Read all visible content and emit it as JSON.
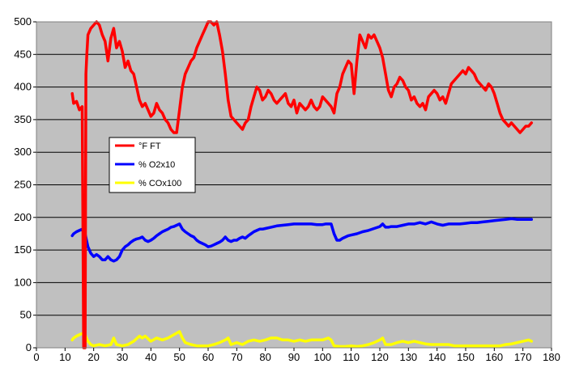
{
  "chart_data": {
    "type": "line",
    "xlim": [
      0,
      180
    ],
    "ylim": [
      0,
      500
    ],
    "xticks": [
      0,
      10,
      20,
      30,
      40,
      50,
      60,
      70,
      80,
      90,
      100,
      110,
      120,
      130,
      140,
      150,
      160,
      170,
      180
    ],
    "yticks": [
      0,
      50,
      100,
      150,
      200,
      250,
      300,
      350,
      400,
      450,
      500
    ],
    "grid": "horizontal",
    "plot_background": "#c0c0c0",
    "legend_position": "center-left",
    "series": [
      {
        "name": "°F FT",
        "color": "#ff0000",
        "x": [
          12.5,
          13,
          14,
          15,
          16,
          16.5,
          17,
          17.3,
          17.6,
          18,
          19,
          20,
          21,
          22,
          23,
          24,
          25,
          26,
          27,
          28,
          29,
          30,
          31,
          32,
          33,
          34,
          35,
          36,
          37,
          38,
          39,
          40,
          41,
          42,
          43,
          44,
          45,
          46,
          47,
          48,
          49,
          50,
          51,
          52,
          53,
          54,
          55,
          56,
          57,
          58,
          59,
          60,
          61,
          62,
          63,
          64,
          65,
          66,
          67,
          68,
          69,
          70,
          71,
          72,
          73,
          74,
          75,
          76,
          77,
          78,
          79,
          80,
          81,
          82,
          83,
          84,
          85,
          86,
          87,
          88,
          89,
          90,
          91,
          92,
          93,
          94,
          95,
          96,
          97,
          98,
          99,
          100,
          101,
          102,
          103,
          104,
          105,
          106,
          107,
          108,
          109,
          110,
          111,
          112,
          113,
          114,
          115,
          116,
          117,
          118,
          119,
          120,
          121,
          122,
          123,
          124,
          125,
          126,
          127,
          128,
          129,
          130,
          131,
          132,
          133,
          134,
          135,
          136,
          137,
          138,
          139,
          140,
          141,
          142,
          143,
          144,
          145,
          146,
          147,
          148,
          149,
          150,
          151,
          152,
          153,
          154,
          155,
          156,
          157,
          158,
          159,
          160,
          161,
          162,
          163,
          164,
          165,
          166,
          167,
          168,
          169,
          170,
          171,
          172,
          173
        ],
        "values": [
          390,
          375,
          378,
          365,
          370,
          0,
          0,
          420,
          450,
          480,
          490,
          495,
          500,
          495,
          480,
          470,
          440,
          475,
          490,
          460,
          470,
          455,
          430,
          440,
          425,
          420,
          400,
          380,
          370,
          375,
          365,
          355,
          360,
          375,
          365,
          360,
          350,
          345,
          335,
          330,
          330,
          365,
          400,
          420,
          430,
          440,
          445,
          460,
          470,
          480,
          490,
          500,
          500,
          495,
          500,
          480,
          455,
          420,
          380,
          355,
          350,
          345,
          340,
          335,
          345,
          350,
          370,
          385,
          400,
          395,
          380,
          385,
          395,
          390,
          380,
          375,
          380,
          385,
          390,
          375,
          370,
          380,
          360,
          375,
          370,
          365,
          370,
          380,
          370,
          365,
          370,
          385,
          380,
          375,
          370,
          360,
          390,
          400,
          420,
          430,
          440,
          435,
          390,
          440,
          480,
          470,
          460,
          480,
          475,
          480,
          470,
          460,
          445,
          420,
          395,
          385,
          400,
          405,
          415,
          410,
          400,
          395,
          380,
          385,
          375,
          370,
          375,
          365,
          385,
          390,
          395,
          390,
          380,
          385,
          375,
          390,
          405,
          410,
          415,
          420,
          425,
          420,
          430,
          425,
          420,
          410,
          405,
          400,
          395,
          405,
          400,
          390,
          375,
          360,
          350,
          345,
          340,
          345,
          340,
          335,
          330,
          335,
          340,
          340,
          345
        ]
      },
      {
        "name": "% O2x10",
        "color": "#0000ff",
        "x": [
          12.5,
          13,
          14,
          15,
          16,
          17,
          18,
          19,
          20,
          21,
          22,
          23,
          24,
          25,
          26,
          27,
          28,
          29,
          30,
          31,
          32,
          33,
          34,
          35,
          36,
          37,
          38,
          39,
          40,
          41,
          42,
          43,
          44,
          45,
          46,
          47,
          48,
          49,
          50,
          51,
          52,
          53,
          54,
          55,
          56,
          57,
          58,
          59,
          60,
          61,
          62,
          63,
          64,
          65,
          66,
          67,
          68,
          69,
          70,
          71,
          72,
          73,
          74,
          75,
          76,
          77,
          78,
          79,
          80,
          82,
          84,
          86,
          88,
          90,
          92,
          94,
          96,
          98,
          100,
          101,
          102,
          103,
          104,
          105,
          106,
          107,
          108,
          109,
          110,
          112,
          114,
          116,
          118,
          120,
          121,
          122,
          123,
          124,
          126,
          128,
          130,
          132,
          134,
          136,
          138,
          140,
          142,
          144,
          146,
          148,
          150,
          152,
          154,
          156,
          158,
          160,
          162,
          164,
          166,
          168,
          170,
          172,
          173
        ],
        "values": [
          172,
          175,
          178,
          180,
          182,
          175,
          155,
          145,
          140,
          143,
          140,
          135,
          135,
          140,
          135,
          133,
          135,
          140,
          150,
          155,
          158,
          162,
          165,
          167,
          168,
          170,
          165,
          163,
          165,
          168,
          172,
          175,
          178,
          180,
          182,
          185,
          186,
          188,
          190,
          182,
          178,
          175,
          172,
          170,
          165,
          162,
          160,
          158,
          155,
          156,
          158,
          160,
          162,
          165,
          170,
          165,
          163,
          165,
          165,
          168,
          170,
          168,
          172,
          175,
          178,
          180,
          182,
          182,
          183,
          185,
          187,
          188,
          189,
          190,
          190,
          190,
          190,
          189,
          189,
          190,
          190,
          190,
          175,
          165,
          165,
          168,
          170,
          172,
          173,
          175,
          178,
          180,
          183,
          186,
          190,
          185,
          185,
          186,
          186,
          188,
          190,
          190,
          192,
          190,
          193,
          190,
          188,
          190,
          190,
          190,
          191,
          192,
          192,
          193,
          194,
          195,
          196,
          197,
          198,
          197,
          197,
          197,
          197
        ]
      },
      {
        "name": "% COx100",
        "color": "#ffff00",
        "x": [
          12.5,
          13,
          14,
          15,
          16,
          17,
          18,
          19,
          20,
          22,
          24,
          26,
          27,
          28,
          30,
          32,
          34,
          36,
          37,
          38,
          40,
          42,
          44,
          46,
          48,
          50,
          51,
          52,
          54,
          56,
          58,
          60,
          62,
          64,
          66,
          67,
          68,
          70,
          72,
          74,
          76,
          78,
          80,
          82,
          84,
          86,
          88,
          90,
          92,
          94,
          96,
          98,
          100,
          102,
          103,
          104,
          106,
          108,
          110,
          112,
          114,
          116,
          118,
          120,
          121,
          122,
          124,
          126,
          128,
          130,
          132,
          134,
          136,
          138,
          140,
          142,
          144,
          146,
          148,
          150,
          152,
          154,
          156,
          158,
          160,
          162,
          164,
          166,
          168,
          170,
          172,
          173
        ],
        "values": [
          12,
          15,
          18,
          20,
          22,
          20,
          10,
          5,
          3,
          5,
          3,
          5,
          15,
          5,
          3,
          5,
          10,
          18,
          15,
          18,
          10,
          15,
          12,
          15,
          20,
          25,
          15,
          8,
          5,
          3,
          3,
          3,
          5,
          8,
          12,
          15,
          5,
          8,
          5,
          10,
          12,
          10,
          12,
          15,
          15,
          12,
          12,
          10,
          12,
          10,
          12,
          12,
          12,
          15,
          12,
          3,
          2,
          2,
          3,
          2,
          3,
          5,
          8,
          12,
          15,
          5,
          5,
          8,
          10,
          8,
          10,
          8,
          6,
          5,
          5,
          5,
          5,
          3,
          3,
          3,
          3,
          3,
          3,
          3,
          3,
          3,
          5,
          6,
          8,
          10,
          12,
          10
        ]
      }
    ]
  }
}
